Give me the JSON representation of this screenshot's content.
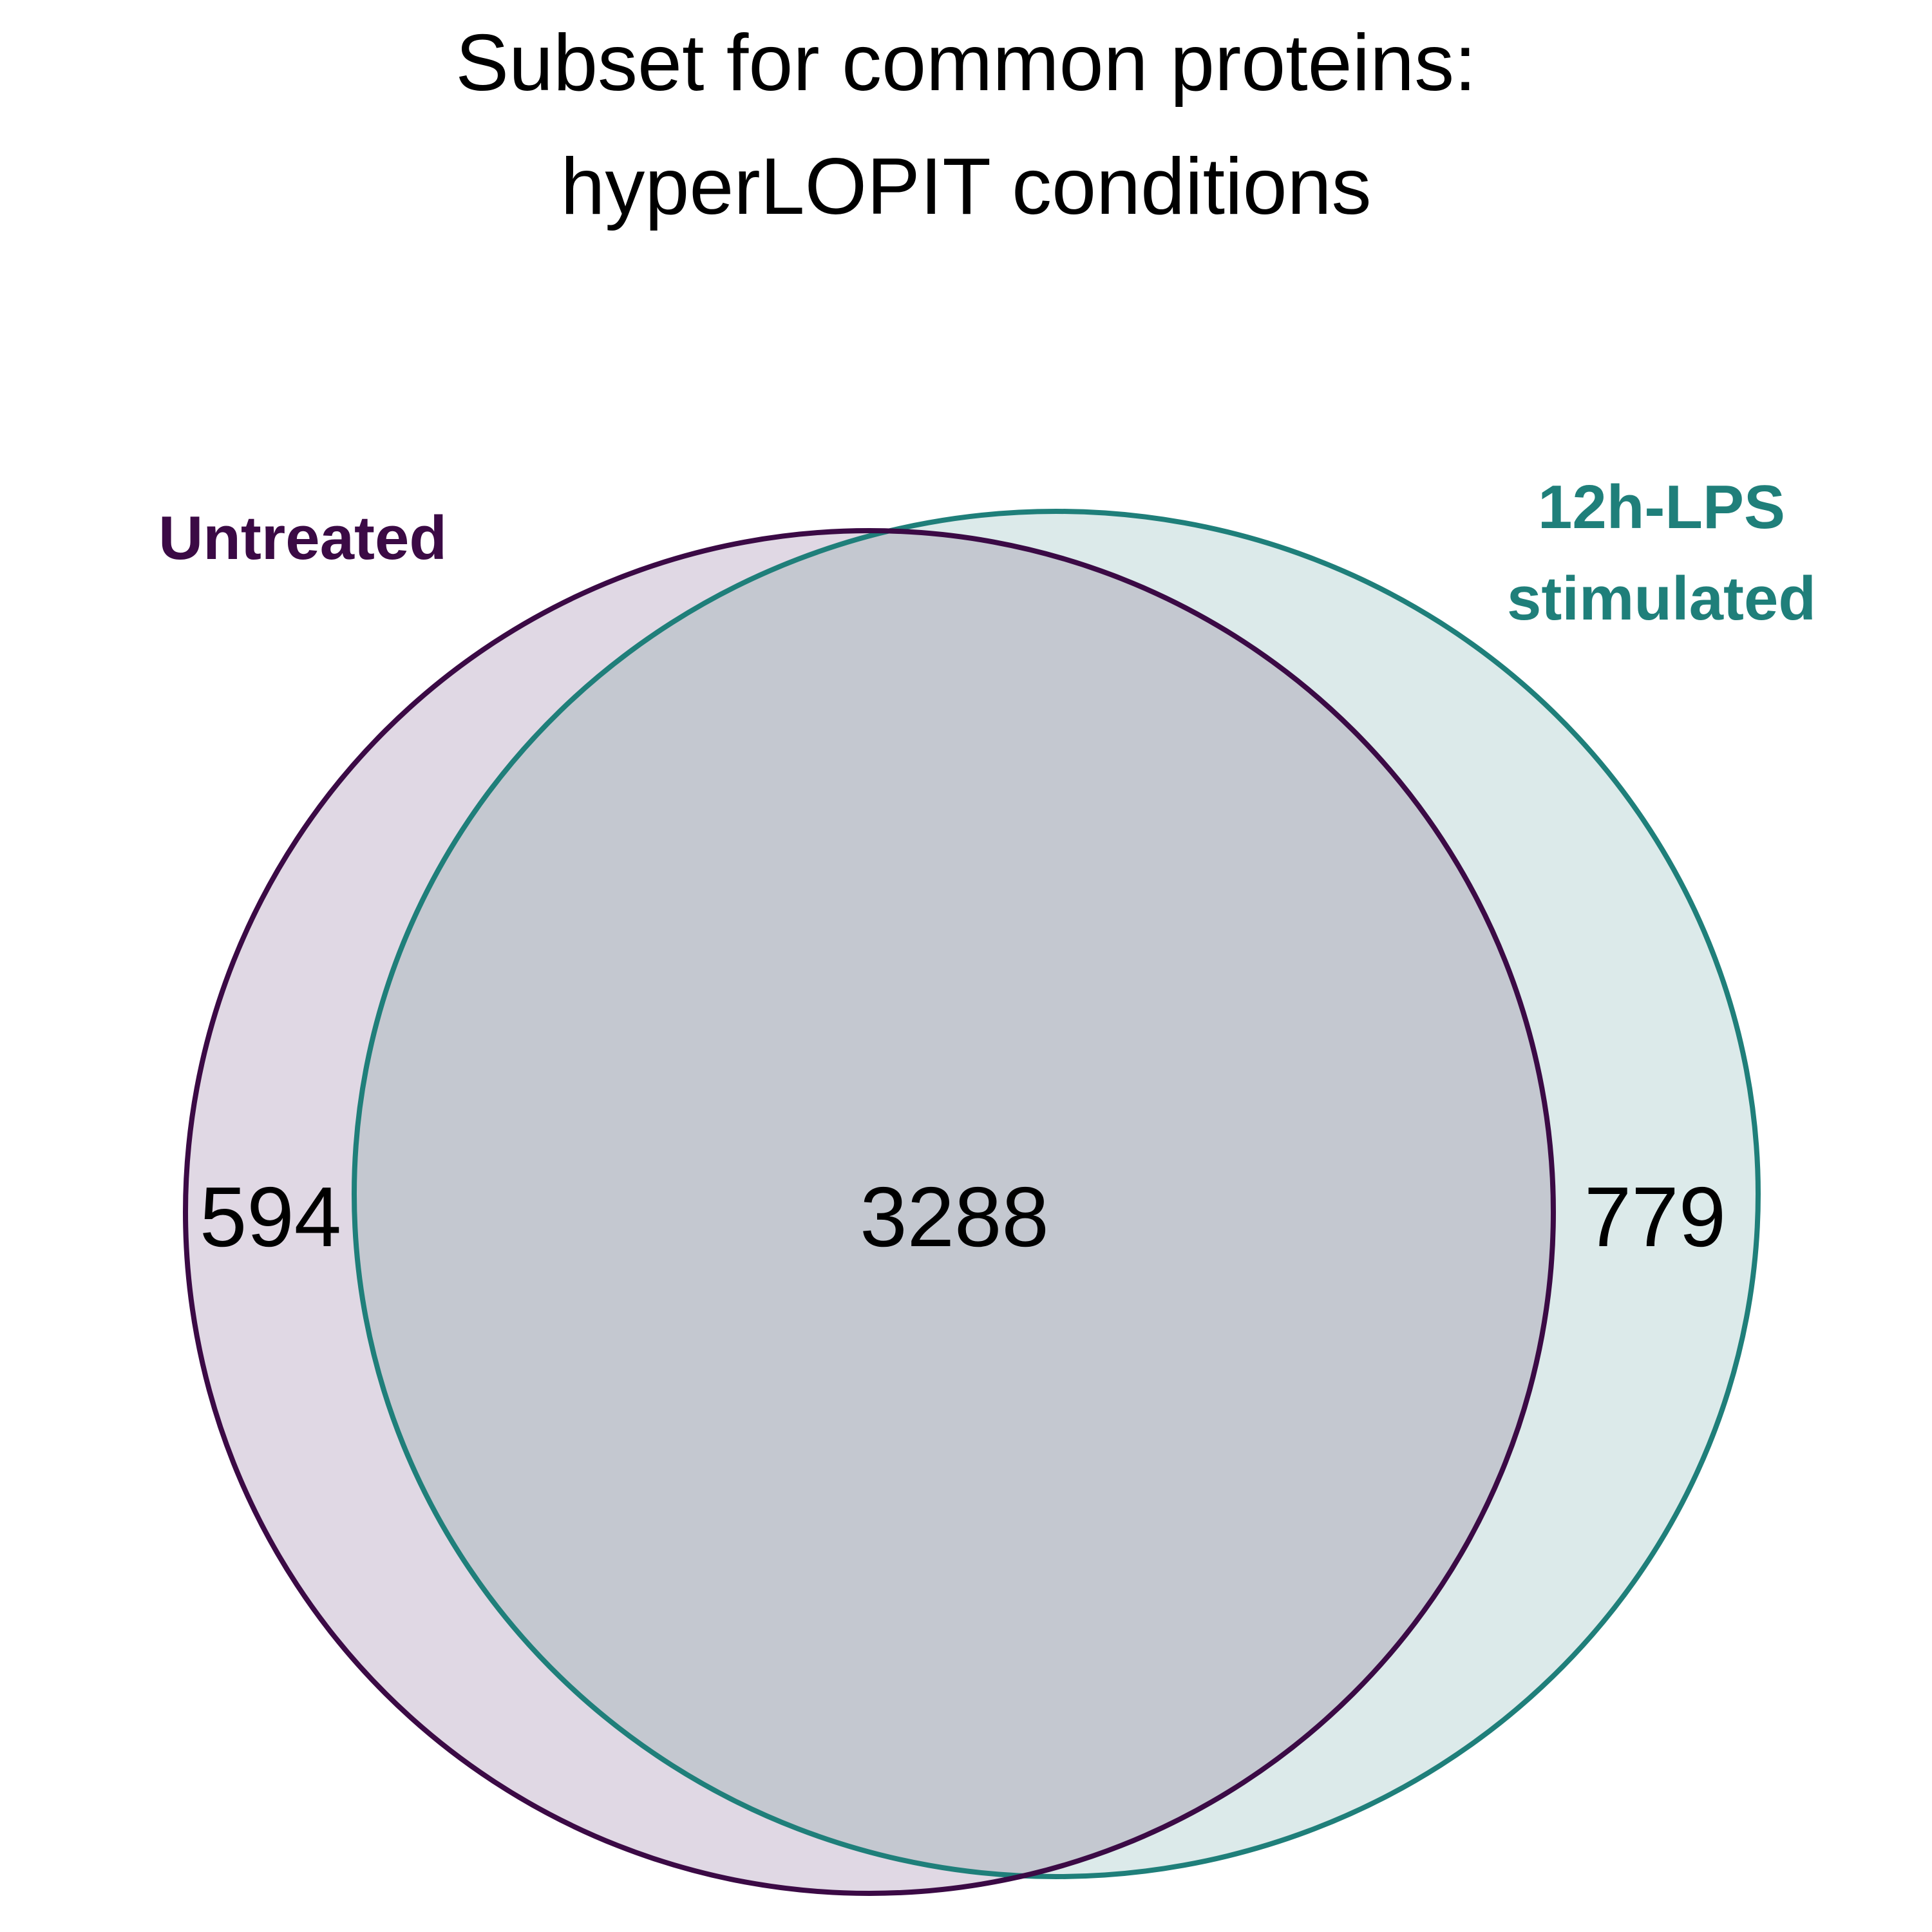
{
  "title": {
    "line1": "Subset for common proteins:",
    "line2": "hyperLOPIT conditions"
  },
  "sets": {
    "untreated": {
      "label": "Untreated",
      "color": "#3b0a45",
      "fill": "#e0d8e4"
    },
    "lps": {
      "label_line1": "12h-LPS",
      "label_line2": "stimulated",
      "color": "#1f7f7a",
      "fill": "#dceaea"
    },
    "overlap_fill": "#c4c8d0"
  },
  "counts": {
    "untreated_only": "594",
    "both": "3288",
    "lps_only": "779"
  }
}
